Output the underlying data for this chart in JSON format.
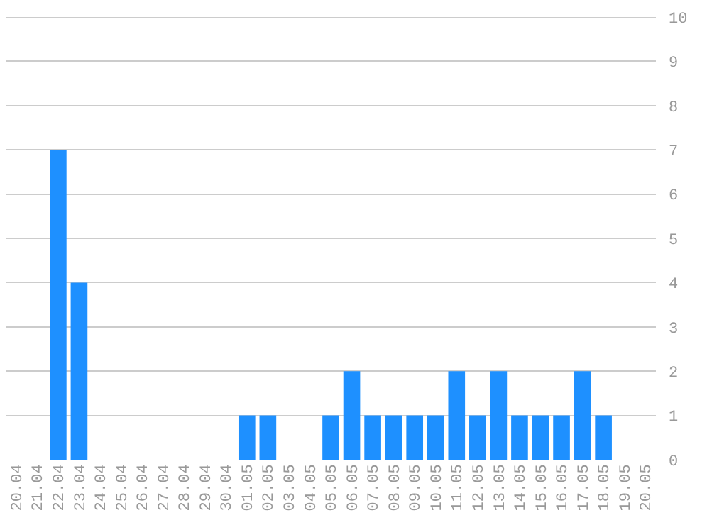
{
  "chart_data": {
    "type": "bar",
    "categories": [
      "20.04",
      "21.04",
      "22.04",
      "23.04",
      "24.04",
      "25.04",
      "26.04",
      "27.04",
      "28.04",
      "29.04",
      "30.04",
      "01.05",
      "02.05",
      "03.05",
      "04.05",
      "05.05",
      "06.05",
      "07.05",
      "08.05",
      "09.05",
      "10.05",
      "11.05",
      "12.05",
      "13.05",
      "14.05",
      "15.05",
      "16.05",
      "17.05",
      "18.05",
      "19.05",
      "20.05"
    ],
    "values": [
      0,
      0,
      7,
      4,
      0,
      0,
      0,
      0,
      0,
      0,
      0,
      1,
      1,
      0,
      0,
      1,
      2,
      1,
      1,
      1,
      1,
      2,
      1,
      2,
      1,
      1,
      1,
      2,
      1,
      0,
      0
    ],
    "color": "#1e90ff",
    "ylim": [
      0,
      10
    ],
    "yticks": [
      0,
      1,
      2,
      3,
      4,
      5,
      6,
      7,
      8,
      9,
      10
    ],
    "grid": "y"
  }
}
